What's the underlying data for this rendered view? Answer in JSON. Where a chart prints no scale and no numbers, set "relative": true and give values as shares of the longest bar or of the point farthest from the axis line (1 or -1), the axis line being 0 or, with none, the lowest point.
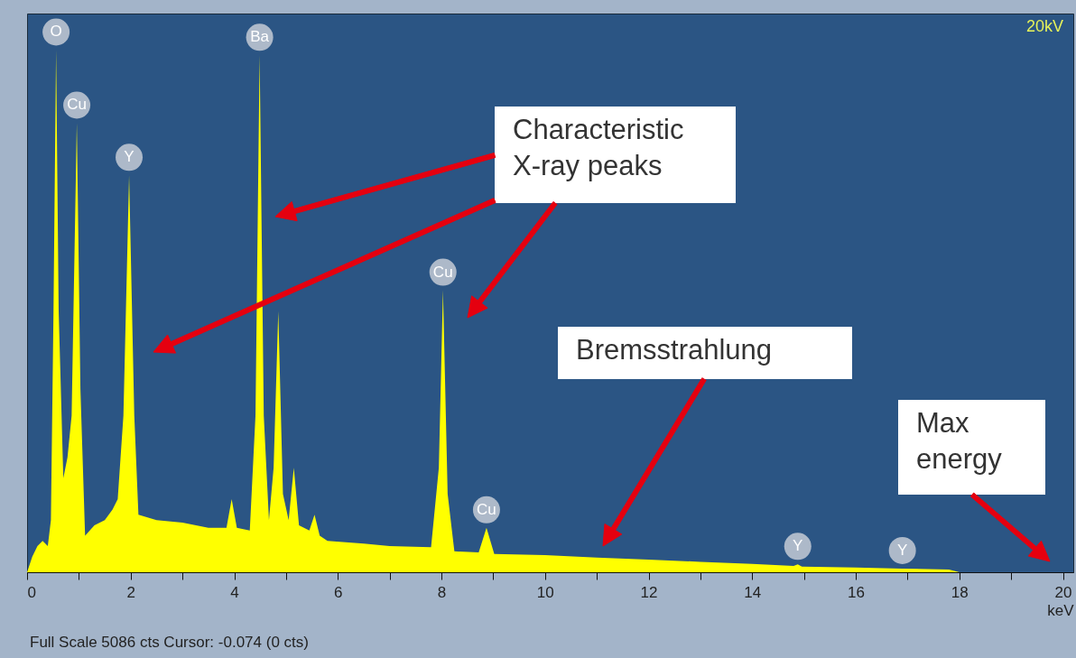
{
  "chart_data": {
    "type": "area",
    "relative": true,
    "xlabel": "keV",
    "color": "#ffff00",
    "x": [
      0.0,
      0.1,
      0.2,
      0.3,
      0.4,
      0.46,
      0.51,
      0.56,
      0.61,
      0.7,
      0.78,
      0.86,
      0.96,
      1.03,
      1.12,
      1.3,
      1.5,
      1.65,
      1.75,
      1.86,
      1.97,
      2.07,
      2.15,
      2.5,
      3.0,
      3.5,
      3.85,
      3.95,
      4.05,
      4.3,
      4.41,
      4.49,
      4.57,
      4.67,
      4.76,
      4.85,
      4.94,
      5.05,
      5.15,
      5.25,
      5.45,
      5.55,
      5.65,
      5.8,
      6.5,
      7.0,
      7.8,
      7.95,
      8.03,
      8.12,
      8.25,
      8.72,
      8.87,
      9.02,
      10.0,
      11.0,
      12.0,
      13.0,
      14.0,
      14.8,
      14.88,
      14.96,
      16.0,
      16.9,
      17.8,
      18.0
    ],
    "values": [
      0,
      0.03,
      0.05,
      0.06,
      0.05,
      0.1,
      0.5,
      1.0,
      0.5,
      0.18,
      0.22,
      0.3,
      0.86,
      0.35,
      0.07,
      0.09,
      0.1,
      0.12,
      0.14,
      0.3,
      0.76,
      0.3,
      0.11,
      0.1,
      0.095,
      0.085,
      0.085,
      0.14,
      0.085,
      0.08,
      0.3,
      0.99,
      0.3,
      0.1,
      0.2,
      0.5,
      0.15,
      0.1,
      0.2,
      0.09,
      0.08,
      0.11,
      0.07,
      0.06,
      0.055,
      0.05,
      0.048,
      0.2,
      0.54,
      0.15,
      0.04,
      0.038,
      0.085,
      0.035,
      0.033,
      0.028,
      0.024,
      0.02,
      0.016,
      0.012,
      0.015,
      0.011,
      0.009,
      0.007,
      0.005,
      0
    ],
    "xlim": [
      0,
      20.2
    ],
    "xticks": [
      0,
      {
        "value": 1,
        "label": null
      },
      2,
      {
        "value": 3,
        "label": null
      },
      4,
      {
        "value": 5,
        "label": null
      },
      6,
      {
        "value": 7,
        "label": null
      },
      8,
      {
        "value": 9,
        "label": null
      },
      10,
      {
        "value": 11,
        "label": null
      },
      12,
      {
        "value": 13,
        "label": null
      },
      14,
      {
        "value": 15,
        "label": null
      },
      16,
      {
        "value": 17,
        "label": null
      },
      18,
      {
        "value": 19,
        "label": null
      },
      20
    ],
    "grid": false,
    "annotations": [
      "Characteristic X-ray peaks",
      "Bremsstrahlung",
      "Max energy",
      "20kV",
      "Full Scale 5086 cts Cursor: -0.074  (0 cts)",
      {
        "text": "O",
        "x": 0.56,
        "y": 1.0
      },
      {
        "text": "Cu",
        "x": 0.96,
        "y": 0.86
      },
      {
        "text": "Y",
        "x": 1.97,
        "y": 0.76
      },
      {
        "text": "Ba",
        "x": 4.49,
        "y": 0.99
      },
      {
        "text": "Cu",
        "x": 8.03,
        "y": 0.54
      },
      {
        "text": "Cu",
        "x": 8.87,
        "y": 0.085
      },
      {
        "text": "Y",
        "x": 14.88,
        "y": 0.015
      },
      {
        "text": "Y",
        "x": 16.9,
        "y": 0.007
      }
    ]
  }
}
